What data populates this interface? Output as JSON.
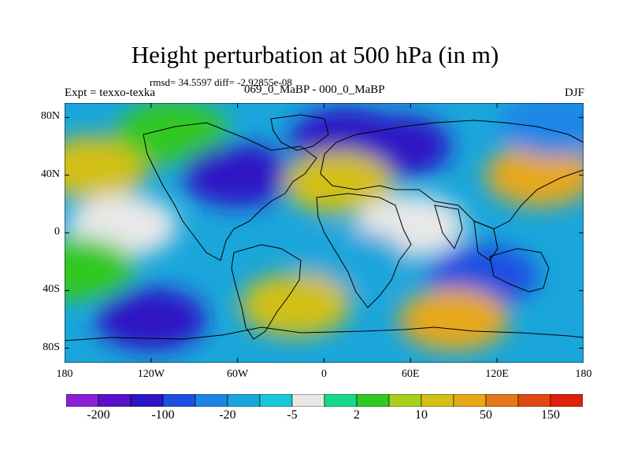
{
  "title": "Height perturbation at 500 hPa (in m)",
  "stats": "rmsd= 34.5597 diff= -2.92855e-08",
  "left_label": "Expt = texxo-texka",
  "center_label": "069_0_MaBP - 000_0_MaBP",
  "right_label": "DJF",
  "lat_ticks": [
    "80N",
    "40N",
    "0",
    "40S",
    "80S"
  ],
  "lat_values": [
    80,
    40,
    0,
    -40,
    -80
  ],
  "lon_ticks": [
    "180",
    "120W",
    "60W",
    "0",
    "60E",
    "120E",
    "180"
  ],
  "lon_values": [
    -180,
    -120,
    -60,
    0,
    60,
    120,
    180
  ],
  "colorbar": {
    "labels": [
      "-200",
      "-100",
      "-20",
      "-5",
      "2",
      "10",
      "50",
      "150"
    ],
    "colors": [
      "#8b1fd6",
      "#5a10c8",
      "#2d14c4",
      "#1d4fe0",
      "#1c86e6",
      "#1aa6db",
      "#18c8d8",
      "#e8e8e8",
      "#14d98a",
      "#32c824",
      "#a6d01c",
      "#d2c018",
      "#e6a81a",
      "#e3781a",
      "#e14a12",
      "#e21f0c"
    ]
  },
  "chart_data": {
    "type": "heatmap",
    "title": "Height perturbation at 500 hPa (in m)",
    "xlim": [
      -180,
      180
    ],
    "ylim": [
      -90,
      90
    ],
    "x_ticks": [
      "180",
      "120W",
      "60W",
      "0",
      "60E",
      "120E",
      "180"
    ],
    "y_ticks": [
      "80N",
      "40N",
      "0",
      "40S",
      "80S"
    ],
    "color_levels": [
      "-200",
      "-100",
      "-20",
      "-5",
      "2",
      "10",
      "50",
      "150"
    ],
    "regions": [
      {
        "lon": -160,
        "lat": 45,
        "level": 50
      },
      {
        "lon": -105,
        "lat": 70,
        "level": 10
      },
      {
        "lon": -60,
        "lat": 40,
        "level": -100
      },
      {
        "lon": 15,
        "lat": 65,
        "level": -100
      },
      {
        "lon": 50,
        "lat": 60,
        "level": -100
      },
      {
        "lon": 10,
        "lat": 35,
        "level": 50
      },
      {
        "lon": 150,
        "lat": 40,
        "level": 100
      },
      {
        "lon": 160,
        "lat": 75,
        "level": -20
      },
      {
        "lon": -140,
        "lat": 5,
        "level": 0
      },
      {
        "lon": 60,
        "lat": 5,
        "level": 0
      },
      {
        "lon": 20,
        "lat": -20,
        "level": -10
      },
      {
        "lon": 110,
        "lat": -30,
        "level": -60
      },
      {
        "lon": -120,
        "lat": -60,
        "level": -100
      },
      {
        "lon": -20,
        "lat": -50,
        "level": 50
      },
      {
        "lon": 90,
        "lat": -60,
        "level": 70
      },
      {
        "lon": -170,
        "lat": -25,
        "level": 8
      }
    ]
  }
}
